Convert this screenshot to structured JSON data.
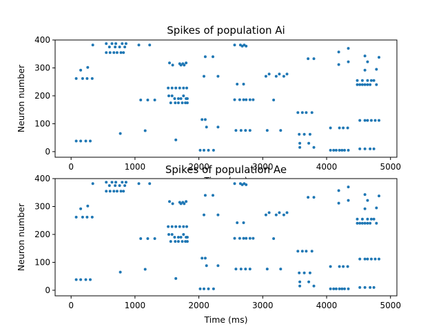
{
  "chart_data": [
    {
      "type": "scatter",
      "title": "Spikes of population Ai",
      "xlabel": "Time (ms)",
      "ylabel": "Neuron number",
      "xlim": [
        -250,
        5100
      ],
      "ylim": [
        -20,
        400
      ],
      "xticks": [
        0,
        1000,
        2000,
        3000,
        4000,
        5000
      ],
      "yticks": [
        0,
        100,
        200,
        300,
        400
      ],
      "color": "#1f77b4",
      "grid": false,
      "points": [
        [
          80,
          38
        ],
        [
          150,
          38
        ],
        [
          230,
          38
        ],
        [
          300,
          38
        ],
        [
          80,
          262
        ],
        [
          180,
          262
        ],
        [
          250,
          262
        ],
        [
          330,
          262
        ],
        [
          150,
          292
        ],
        [
          260,
          302
        ],
        [
          340,
          382
        ],
        [
          550,
          387
        ],
        [
          600,
          375
        ],
        [
          640,
          387
        ],
        [
          690,
          375
        ],
        [
          700,
          387
        ],
        [
          760,
          375
        ],
        [
          800,
          387
        ],
        [
          840,
          375
        ],
        [
          860,
          387
        ],
        [
          550,
          355
        ],
        [
          610,
          355
        ],
        [
          670,
          355
        ],
        [
          720,
          355
        ],
        [
          780,
          355
        ],
        [
          820,
          355
        ],
        [
          770,
          65
        ],
        [
          1060,
          382
        ],
        [
          1230,
          382
        ],
        [
          1090,
          185
        ],
        [
          1200,
          185
        ],
        [
          1310,
          185
        ],
        [
          1160,
          75
        ],
        [
          1540,
          318
        ],
        [
          1590,
          310
        ],
        [
          1700,
          315
        ],
        [
          1720,
          310
        ],
        [
          1750,
          315
        ],
        [
          1770,
          310
        ],
        [
          1800,
          318
        ],
        [
          1520,
          228
        ],
        [
          1580,
          228
        ],
        [
          1640,
          228
        ],
        [
          1700,
          228
        ],
        [
          1760,
          228
        ],
        [
          1810,
          228
        ],
        [
          1530,
          200
        ],
        [
          1580,
          200
        ],
        [
          1620,
          190
        ],
        [
          1680,
          190
        ],
        [
          1720,
          190
        ],
        [
          1760,
          200
        ],
        [
          1800,
          190
        ],
        [
          1820,
          190
        ],
        [
          1560,
          175
        ],
        [
          1630,
          175
        ],
        [
          1680,
          175
        ],
        [
          1740,
          175
        ],
        [
          1790,
          175
        ],
        [
          1820,
          175
        ],
        [
          1640,
          42
        ],
        [
          2050,
          115
        ],
        [
          2100,
          115
        ],
        [
          2120,
          88
        ],
        [
          2100,
          340
        ],
        [
          2220,
          340
        ],
        [
          2080,
          270
        ],
        [
          2300,
          270
        ],
        [
          2300,
          88
        ],
        [
          2020,
          5
        ],
        [
          2080,
          5
        ],
        [
          2150,
          5
        ],
        [
          2230,
          5
        ],
        [
          2560,
          382
        ],
        [
          2650,
          382
        ],
        [
          2680,
          378
        ],
        [
          2710,
          382
        ],
        [
          2740,
          378
        ],
        [
          2600,
          242
        ],
        [
          2700,
          242
        ],
        [
          2560,
          186
        ],
        [
          2640,
          186
        ],
        [
          2700,
          186
        ],
        [
          2740,
          186
        ],
        [
          2800,
          186
        ],
        [
          2850,
          186
        ],
        [
          2580,
          76
        ],
        [
          2660,
          76
        ],
        [
          2730,
          76
        ],
        [
          2800,
          76
        ],
        [
          3070,
          76
        ],
        [
          3280,
          76
        ],
        [
          3050,
          270
        ],
        [
          3100,
          278
        ],
        [
          3210,
          270
        ],
        [
          3260,
          278
        ],
        [
          3330,
          270
        ],
        [
          3380,
          278
        ],
        [
          3170,
          185
        ],
        [
          3550,
          140
        ],
        [
          3620,
          140
        ],
        [
          3680,
          140
        ],
        [
          3770,
          140
        ],
        [
          3570,
          62
        ],
        [
          3650,
          62
        ],
        [
          3740,
          62
        ],
        [
          3580,
          30
        ],
        [
          3580,
          15
        ],
        [
          3720,
          30
        ],
        [
          3800,
          15
        ],
        [
          3710,
          333
        ],
        [
          3800,
          333
        ],
        [
          4060,
          5
        ],
        [
          4110,
          5
        ],
        [
          4150,
          5
        ],
        [
          4200,
          5
        ],
        [
          4240,
          5
        ],
        [
          4280,
          5
        ],
        [
          4340,
          5
        ],
        [
          4060,
          85
        ],
        [
          4200,
          85
        ],
        [
          4260,
          85
        ],
        [
          4330,
          85
        ],
        [
          4190,
          357
        ],
        [
          4190,
          312
        ],
        [
          4340,
          370
        ],
        [
          4340,
          322
        ],
        [
          4480,
          255
        ],
        [
          4520,
          240
        ],
        [
          4560,
          255
        ],
        [
          4600,
          240
        ],
        [
          4640,
          255
        ],
        [
          4680,
          240
        ],
        [
          4740,
          255
        ],
        [
          4780,
          240
        ],
        [
          4480,
          240
        ],
        [
          4560,
          240
        ],
        [
          4640,
          240
        ],
        [
          4700,
          255
        ],
        [
          4520,
          112
        ],
        [
          4600,
          112
        ],
        [
          4640,
          112
        ],
        [
          4700,
          112
        ],
        [
          4760,
          112
        ],
        [
          4820,
          112
        ],
        [
          4520,
          10
        ],
        [
          4600,
          10
        ],
        [
          4680,
          10
        ],
        [
          4740,
          10
        ],
        [
          4600,
          343
        ],
        [
          4640,
          322
        ],
        [
          4820,
          338
        ],
        [
          4780,
          295
        ],
        [
          4600,
          292
        ]
      ]
    },
    {
      "type": "scatter",
      "title": "Spikes of population Ae",
      "xlabel": "Time (ms)",
      "ylabel": "Neuron number",
      "xlim": [
        -250,
        5100
      ],
      "ylim": [
        -20,
        400
      ],
      "xticks": [
        0,
        1000,
        2000,
        3000,
        4000,
        5000
      ],
      "yticks": [
        0,
        100,
        200,
        300,
        400
      ],
      "color": "#1f77b4",
      "grid": false,
      "points": [
        [
          80,
          38
        ],
        [
          150,
          38
        ],
        [
          230,
          38
        ],
        [
          300,
          38
        ],
        [
          80,
          262
        ],
        [
          180,
          262
        ],
        [
          250,
          262
        ],
        [
          330,
          262
        ],
        [
          150,
          292
        ],
        [
          260,
          302
        ],
        [
          340,
          382
        ],
        [
          550,
          387
        ],
        [
          600,
          375
        ],
        [
          640,
          387
        ],
        [
          690,
          375
        ],
        [
          700,
          387
        ],
        [
          760,
          375
        ],
        [
          800,
          387
        ],
        [
          840,
          375
        ],
        [
          860,
          387
        ],
        [
          550,
          355
        ],
        [
          610,
          355
        ],
        [
          670,
          355
        ],
        [
          720,
          355
        ],
        [
          780,
          355
        ],
        [
          820,
          355
        ],
        [
          770,
          65
        ],
        [
          1060,
          382
        ],
        [
          1230,
          382
        ],
        [
          1090,
          185
        ],
        [
          1200,
          185
        ],
        [
          1310,
          185
        ],
        [
          1160,
          75
        ],
        [
          1540,
          318
        ],
        [
          1590,
          310
        ],
        [
          1700,
          315
        ],
        [
          1720,
          310
        ],
        [
          1750,
          315
        ],
        [
          1770,
          310
        ],
        [
          1800,
          318
        ],
        [
          1520,
          228
        ],
        [
          1580,
          228
        ],
        [
          1640,
          228
        ],
        [
          1700,
          228
        ],
        [
          1760,
          228
        ],
        [
          1810,
          228
        ],
        [
          1530,
          200
        ],
        [
          1580,
          200
        ],
        [
          1620,
          190
        ],
        [
          1680,
          190
        ],
        [
          1720,
          190
        ],
        [
          1760,
          200
        ],
        [
          1800,
          190
        ],
        [
          1820,
          190
        ],
        [
          1560,
          175
        ],
        [
          1630,
          175
        ],
        [
          1680,
          175
        ],
        [
          1740,
          175
        ],
        [
          1790,
          175
        ],
        [
          1820,
          175
        ],
        [
          1640,
          42
        ],
        [
          2050,
          115
        ],
        [
          2100,
          115
        ],
        [
          2120,
          88
        ],
        [
          2100,
          340
        ],
        [
          2220,
          340
        ],
        [
          2080,
          270
        ],
        [
          2300,
          270
        ],
        [
          2300,
          88
        ],
        [
          2020,
          5
        ],
        [
          2080,
          5
        ],
        [
          2150,
          5
        ],
        [
          2230,
          5
        ],
        [
          2560,
          382
        ],
        [
          2650,
          382
        ],
        [
          2680,
          378
        ],
        [
          2710,
          382
        ],
        [
          2740,
          378
        ],
        [
          2600,
          242
        ],
        [
          2700,
          242
        ],
        [
          2560,
          186
        ],
        [
          2640,
          186
        ],
        [
          2700,
          186
        ],
        [
          2740,
          186
        ],
        [
          2800,
          186
        ],
        [
          2850,
          186
        ],
        [
          2580,
          76
        ],
        [
          2660,
          76
        ],
        [
          2730,
          76
        ],
        [
          2800,
          76
        ],
        [
          3070,
          76
        ],
        [
          3280,
          76
        ],
        [
          3050,
          270
        ],
        [
          3100,
          278
        ],
        [
          3210,
          270
        ],
        [
          3260,
          278
        ],
        [
          3330,
          270
        ],
        [
          3380,
          278
        ],
        [
          3170,
          185
        ],
        [
          3550,
          140
        ],
        [
          3620,
          140
        ],
        [
          3680,
          140
        ],
        [
          3770,
          140
        ],
        [
          3570,
          62
        ],
        [
          3650,
          62
        ],
        [
          3740,
          62
        ],
        [
          3580,
          30
        ],
        [
          3580,
          15
        ],
        [
          3720,
          30
        ],
        [
          3800,
          15
        ],
        [
          3710,
          333
        ],
        [
          3800,
          333
        ],
        [
          4060,
          5
        ],
        [
          4110,
          5
        ],
        [
          4150,
          5
        ],
        [
          4200,
          5
        ],
        [
          4240,
          5
        ],
        [
          4280,
          5
        ],
        [
          4340,
          5
        ],
        [
          4060,
          85
        ],
        [
          4200,
          85
        ],
        [
          4260,
          85
        ],
        [
          4330,
          85
        ],
        [
          4190,
          357
        ],
        [
          4190,
          312
        ],
        [
          4340,
          370
        ],
        [
          4340,
          322
        ],
        [
          4480,
          255
        ],
        [
          4520,
          240
        ],
        [
          4560,
          255
        ],
        [
          4600,
          240
        ],
        [
          4640,
          255
        ],
        [
          4680,
          240
        ],
        [
          4740,
          255
        ],
        [
          4780,
          240
        ],
        [
          4480,
          240
        ],
        [
          4560,
          240
        ],
        [
          4640,
          240
        ],
        [
          4700,
          255
        ],
        [
          4520,
          112
        ],
        [
          4600,
          112
        ],
        [
          4640,
          112
        ],
        [
          4700,
          112
        ],
        [
          4760,
          112
        ],
        [
          4820,
          112
        ],
        [
          4520,
          10
        ],
        [
          4600,
          10
        ],
        [
          4680,
          10
        ],
        [
          4740,
          10
        ],
        [
          4600,
          343
        ],
        [
          4640,
          322
        ],
        [
          4820,
          338
        ],
        [
          4780,
          295
        ],
        [
          4600,
          292
        ]
      ]
    }
  ]
}
